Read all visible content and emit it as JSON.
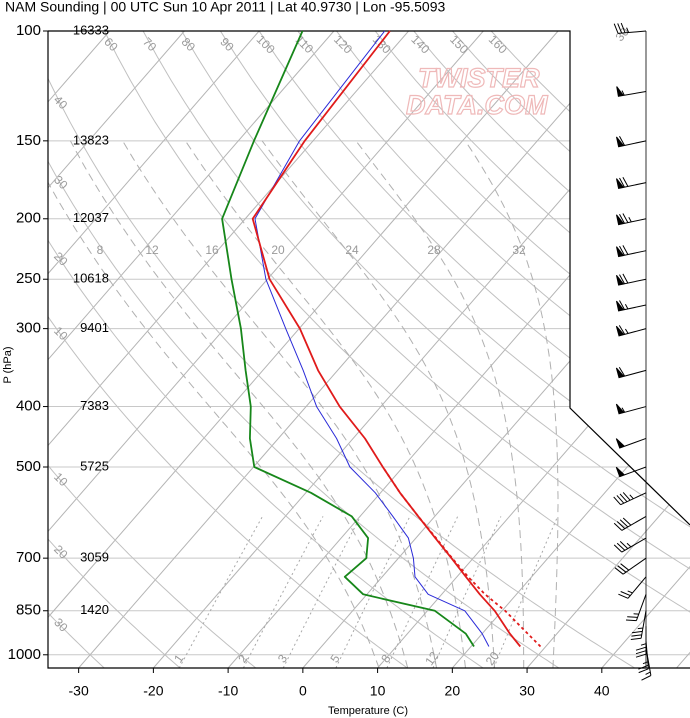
{
  "chart_data": {
    "type": "skew-t",
    "title": "NAM Sounding | 00 UTC Sun 10 Apr 2011 | Lat 40.9730 | Lon -95.5093",
    "x_label": "Temperature (C)",
    "y_label": "P (hPa)",
    "watermark": [
      "TWISTER",
      "DATA.COM"
    ],
    "xlim": [
      -34.1,
      51.8
    ],
    "xticks": [
      -30,
      -20,
      -10,
      0,
      10,
      20,
      30,
      40
    ],
    "ylim": [
      1050,
      100
    ],
    "log_y": true,
    "yticks": [
      100,
      150,
      200,
      250,
      300,
      400,
      500,
      700,
      850,
      1000
    ],
    "grid": true,
    "pressures": [
      970,
      925,
      850,
      800,
      750,
      700,
      650,
      600,
      550,
      500,
      450,
      400,
      350,
      300,
      250,
      200,
      150,
      100
    ],
    "series": [
      {
        "color": "#2a2ad8",
        "dash": false,
        "values": [
          22.4,
          20.0,
          15.0,
          8.2,
          4.4,
          2.0,
          -1.0,
          -5.6,
          -10.7,
          -17.1,
          -22.2,
          -28.6,
          -34.6,
          -41.8,
          -50.2,
          -58.7,
          -61.8,
          -63.2
        ]
      },
      {
        "color": "#e01b1b",
        "dash": true,
        "values": [
          29.3,
          26.1,
          20.4,
          15.8,
          11.5,
          7.2,
          2.7,
          -2.2,
          -7.4,
          -12.7,
          null,
          null,
          null,
          null,
          null,
          null,
          null,
          null
        ]
      },
      {
        "color": "#e01b1b",
        "dash": false,
        "values": [
          26.6,
          23.7,
          19.0,
          15.1,
          11.2,
          7.1,
          2.6,
          -2.2,
          -7.4,
          -12.7,
          -18.4,
          -25.5,
          -32.6,
          -39.9,
          -49.7,
          -59.0,
          -61.1,
          -62.5
        ]
      },
      {
        "color": "#17871a",
        "dash": false,
        "values": [
          20.4,
          17.8,
          11.0,
          -0.5,
          -5.0,
          -4.3,
          -6.4,
          -11.1,
          -19.3,
          -29.9,
          -33.8,
          -37.4,
          -42.3,
          -47.8,
          -54.8,
          -63.1,
          -67.9,
          -74.2
        ]
      }
    ],
    "heights": {
      "pressures": [
        100,
        150,
        200,
        250,
        300,
        400,
        500,
        700,
        850
      ],
      "values": [
        16333,
        13823,
        12037,
        10618,
        9401,
        7383,
        5725,
        3059,
        1420
      ]
    },
    "isotherms": [
      -110,
      -100,
      -90,
      -80,
      -70,
      -60,
      -50,
      -40,
      -30,
      -20,
      -10,
      0,
      10,
      20,
      30,
      40,
      50
    ],
    "isotherm_labels": [
      {
        "value": -30,
        "label": "30"
      },
      {
        "value": -20,
        "label": "20"
      },
      {
        "value": -10,
        "label": "10"
      },
      0,
      10,
      20,
      30
    ],
    "dry_adiabats": [
      {
        "value": -30,
        "label": "30"
      },
      {
        "value": -20,
        "label": "20"
      },
      {
        "value": -10,
        "label": "10"
      },
      10,
      20,
      30,
      40,
      60,
      70,
      80,
      90,
      100,
      110,
      120,
      130,
      140,
      150,
      160
    ],
    "moist_adiabats": [
      8,
      12,
      16,
      20,
      24,
      28,
      32
    ],
    "mixing_ratios": [
      1,
      2,
      3,
      5,
      8,
      12,
      20
    ],
    "wind": {
      "pressures": [
        100,
        125,
        150,
        175,
        200,
        225,
        250,
        275,
        300,
        350,
        400,
        450,
        500,
        550,
        600,
        650,
        700,
        750,
        800,
        850,
        900,
        950,
        975
      ],
      "speed": [
        35,
        55,
        60,
        70,
        75,
        70,
        70,
        65,
        65,
        60,
        55,
        50,
        50,
        45,
        40,
        35,
        30,
        25,
        25,
        35,
        35,
        25,
        15
      ],
      "direction": [
        265,
        260,
        258,
        258,
        258,
        258,
        258,
        258,
        255,
        255,
        255,
        250,
        250,
        245,
        240,
        240,
        235,
        220,
        200,
        190,
        180,
        175,
        170
      ]
    }
  }
}
